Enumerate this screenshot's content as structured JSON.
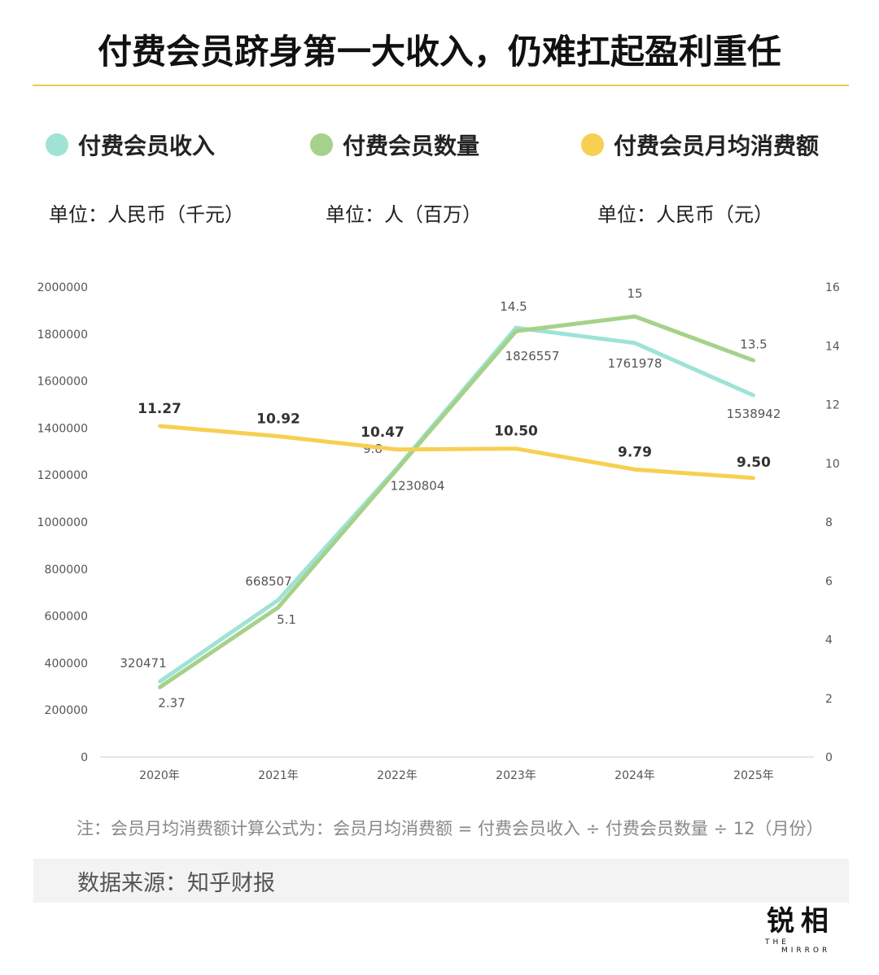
{
  "title": "付费会员跻身第一大收入，仍难扛起盈利重任",
  "legend": [
    {
      "label": "付费会员收入",
      "color": "#9ee3d6",
      "unit": "单位：人民币（千元）"
    },
    {
      "label": "付费会员数量",
      "color": "#a6d18a",
      "unit": "单位：人（百万）"
    },
    {
      "label": "付费会员月均消费额",
      "color": "#f7cf52",
      "unit": "单位：人民币（元）"
    }
  ],
  "chart_data": {
    "type": "line",
    "categories": [
      "2020年",
      "2021年",
      "2022年",
      "2023年",
      "2024年",
      "2025年"
    ],
    "left_axis": {
      "ylim": [
        0,
        2000000
      ],
      "ticks": [
        "0",
        "200000",
        "400000",
        "600000",
        "800000",
        "1000000",
        "1200000",
        "1400000",
        "1600000",
        "1800000",
        "2000000"
      ]
    },
    "right_axis": {
      "ylim": [
        0,
        16
      ],
      "ticks": [
        "0",
        "2",
        "4",
        "6",
        "8",
        "10",
        "12",
        "14",
        "16"
      ]
    },
    "series": [
      {
        "name": "付费会员收入",
        "axis": "left",
        "color": "#9ee3d6",
        "values": [
          320471,
          668507,
          1230804,
          1826557,
          1761978,
          1538942
        ],
        "labels": [
          "320471",
          "668507",
          "1230804",
          "1826557",
          "1761978",
          "1538942"
        ]
      },
      {
        "name": "付费会员数量",
        "axis": "right",
        "color": "#a6d18a",
        "values": [
          2.37,
          5.1,
          9.8,
          14.5,
          15,
          13.5
        ],
        "labels": [
          "2.37",
          "5.1",
          "9.8",
          "14.5",
          "15",
          "13.5"
        ]
      },
      {
        "name": "付费会员月均消费额",
        "axis": "right",
        "color": "#f7cf52",
        "values": [
          11.27,
          10.92,
          10.47,
          10.5,
          9.79,
          9.5
        ],
        "labels": [
          "11.27",
          "10.92",
          "10.47",
          "10.50",
          "9.79",
          "9.50"
        ]
      }
    ]
  },
  "note": "注：会员月均消费额计算公式为：会员月均消费额 = 付费会员收入 ÷ 付费会员数量 ÷ 12（月份）",
  "source": "数据来源：知乎财报",
  "logo": {
    "cn": "锐相",
    "en1": "THE",
    "en2": "MIRROR"
  }
}
